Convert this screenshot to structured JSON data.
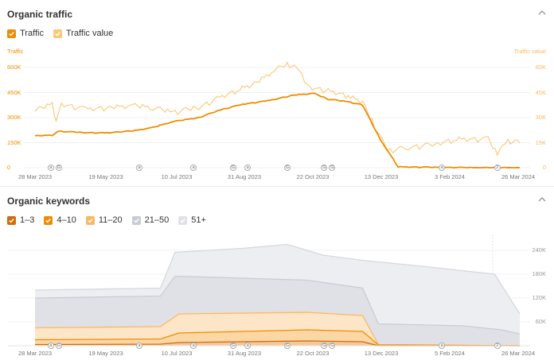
{
  "traffic_section": {
    "title": "Organic traffic",
    "legend": [
      {
        "label": "Traffic",
        "color": "#f08c00",
        "checked": true
      },
      {
        "label": "Traffic value",
        "color": "#fbc778",
        "checked": true
      }
    ],
    "left_axis_label": "Traffic",
    "right_axis_label": "Traffic value",
    "left_ticks": [
      "600K",
      "450K",
      "300K",
      "150K",
      "0"
    ],
    "right_ticks": [
      "60K",
      "45K",
      "30K",
      "15K",
      "0"
    ],
    "x_ticks": [
      "28 Mar 2023",
      "19 May 2023",
      "10 Jul 2023",
      "31 Aug 2023",
      "22 Oct 2023",
      "13 Dec 2023",
      "3 Feb 2024",
      "26 Mar 2024"
    ],
    "markers": [
      {
        "label": "a",
        "date": "2023-04-09"
      },
      {
        "label": "G",
        "date": "2023-04-15"
      },
      {
        "label": "a",
        "date": "2023-06-15"
      },
      {
        "label": "a",
        "date": "2023-07-26"
      },
      {
        "label": "G",
        "date": "2023-08-25"
      },
      {
        "label": "a",
        "date": "2023-09-05"
      },
      {
        "label": "G",
        "date": "2023-10-05"
      },
      {
        "label": "G",
        "date": "2023-11-02"
      },
      {
        "label": "G",
        "date": "2023-11-08"
      },
      {
        "label": "a",
        "date": "2024-01-30"
      },
      {
        "label": "2",
        "date": "2024-03-12"
      }
    ]
  },
  "keywords_section": {
    "title": "Organic keywords",
    "legend": [
      {
        "label": "1–3",
        "color": "#d46b08",
        "checked": true
      },
      {
        "label": "4–10",
        "color": "#f08c00",
        "checked": true
      },
      {
        "label": "11–20",
        "color": "#fbb862",
        "checked": true
      },
      {
        "label": "21–50",
        "color": "#c9ccd3",
        "checked": true
      },
      {
        "label": "51+",
        "color": "#e0e2e7",
        "checked": true
      }
    ],
    "right_ticks": [
      "240K",
      "180K",
      "120K",
      "60K"
    ],
    "x_ticks": [
      "28 Mar 2023",
      "19 May 2023",
      "10 Jul 2023",
      "31 Aug 2023",
      "22 Oct 2023",
      "13 Dec 2023",
      "5 Feb 2024",
      "26 Mar 2024"
    ],
    "markers": [
      {
        "label": "a",
        "date": "2023-04-09"
      },
      {
        "label": "G",
        "date": "2023-04-15"
      },
      {
        "label": "a",
        "date": "2023-06-15"
      },
      {
        "label": "a",
        "date": "2023-07-26"
      },
      {
        "label": "G",
        "date": "2023-08-25"
      },
      {
        "label": "a",
        "date": "2023-09-05"
      },
      {
        "label": "G",
        "date": "2023-10-05"
      },
      {
        "label": "G",
        "date": "2023-11-02"
      },
      {
        "label": "G",
        "date": "2023-11-08"
      },
      {
        "label": "a",
        "date": "2024-01-30"
      },
      {
        "label": "2",
        "date": "2024-03-12"
      }
    ]
  },
  "colors": {
    "traffic": "#f08c00",
    "traffic_value": "#fbc778",
    "axis_orange": "#f08c00",
    "axis_light_orange": "#fbb862"
  },
  "chart_data": [
    {
      "type": "line",
      "title": "Organic traffic",
      "ylabel": "Traffic",
      "y2label": "Traffic value",
      "ylim": [
        0,
        600000
      ],
      "y2lim": [
        0,
        60000
      ],
      "series": [
        {
          "name": "Traffic",
          "axis": "left",
          "points": [
            [
              "2023-03-28",
              190000
            ],
            [
              "2023-04-10",
              195000
            ],
            [
              "2023-04-15",
              218000
            ],
            [
              "2023-05-05",
              210000
            ],
            [
              "2023-05-20",
              208000
            ],
            [
              "2023-06-10",
              220000
            ],
            [
              "2023-06-25",
              240000
            ],
            [
              "2023-07-10",
              275000
            ],
            [
              "2023-07-30",
              300000
            ],
            [
              "2023-08-15",
              345000
            ],
            [
              "2023-09-01",
              380000
            ],
            [
              "2023-09-20",
              400000
            ],
            [
              "2023-10-10",
              435000
            ],
            [
              "2023-10-25",
              445000
            ],
            [
              "2023-11-05",
              410000
            ],
            [
              "2023-11-20",
              395000
            ],
            [
              "2023-12-01",
              375000
            ],
            [
              "2023-12-15",
              160000
            ],
            [
              "2023-12-28",
              5000
            ],
            [
              "2024-02-15",
              0
            ],
            [
              "2024-03-29",
              0
            ]
          ]
        },
        {
          "name": "Traffic value",
          "axis": "right",
          "points": [
            [
              "2023-03-28",
              34000
            ],
            [
              "2023-04-10",
              38000
            ],
            [
              "2023-04-13",
              28000
            ],
            [
              "2023-04-17",
              38000
            ],
            [
              "2023-05-05",
              35000
            ],
            [
              "2023-05-25",
              36000
            ],
            [
              "2023-06-10",
              37000
            ],
            [
              "2023-06-25",
              36000
            ],
            [
              "2023-07-10",
              33000
            ],
            [
              "2023-07-30",
              36000
            ],
            [
              "2023-08-15",
              42000
            ],
            [
              "2023-08-30",
              47000
            ],
            [
              "2023-09-10",
              50000
            ],
            [
              "2023-09-25",
              58000
            ],
            [
              "2023-10-05",
              62000
            ],
            [
              "2023-10-12",
              60000
            ],
            [
              "2023-10-22",
              48000
            ],
            [
              "2023-11-05",
              46000
            ],
            [
              "2023-11-20",
              43000
            ],
            [
              "2023-12-01",
              39000
            ],
            [
              "2023-12-10",
              25000
            ],
            [
              "2023-12-20",
              10000
            ],
            [
              "2024-01-05",
              12000
            ],
            [
              "2024-01-25",
              14000
            ],
            [
              "2024-02-10",
              17000
            ],
            [
              "2024-03-05",
              17000
            ],
            [
              "2024-03-12",
              8000
            ],
            [
              "2024-03-20",
              16000
            ],
            [
              "2024-03-29",
              15000
            ]
          ]
        }
      ]
    },
    {
      "type": "area",
      "title": "Organic keywords",
      "ylim": [
        0,
        280000
      ],
      "stacked": true,
      "series": [
        {
          "name": "1–3",
          "points": [
            [
              "2023-03-28",
              3000
            ],
            [
              "2023-07-01",
              4000
            ],
            [
              "2023-07-15",
              8000
            ],
            [
              "2023-10-20",
              12000
            ],
            [
              "2023-12-01",
              10000
            ],
            [
              "2023-12-13",
              0
            ],
            [
              "2024-03-29",
              0
            ]
          ]
        },
        {
          "name": "4–10",
          "points": [
            [
              "2023-03-28",
              15000
            ],
            [
              "2023-07-01",
              17000
            ],
            [
              "2023-07-15",
              32000
            ],
            [
              "2023-10-20",
              40000
            ],
            [
              "2023-12-01",
              36000
            ],
            [
              "2023-12-13",
              2000
            ],
            [
              "2024-03-29",
              0
            ]
          ]
        },
        {
          "name": "11–20",
          "points": [
            [
              "2023-03-28",
              45000
            ],
            [
              "2023-07-01",
              48000
            ],
            [
              "2023-07-15",
              80000
            ],
            [
              "2023-10-20",
              84000
            ],
            [
              "2023-12-01",
              76000
            ],
            [
              "2023-12-13",
              3000
            ],
            [
              "2024-03-29",
              0
            ]
          ]
        },
        {
          "name": "21–50",
          "points": [
            [
              "2023-03-28",
              120000
            ],
            [
              "2023-07-01",
              125000
            ],
            [
              "2023-07-12",
              175000
            ],
            [
              "2023-09-01",
              170000
            ],
            [
              "2023-10-20",
              165000
            ],
            [
              "2023-12-01",
              145000
            ],
            [
              "2023-12-13",
              55000
            ],
            [
              "2024-02-15",
              50000
            ],
            [
              "2024-03-15",
              40000
            ],
            [
              "2024-03-29",
              30000
            ]
          ]
        },
        {
          "name": "51+",
          "points": [
            [
              "2023-03-28",
              140000
            ],
            [
              "2023-07-01",
              145000
            ],
            [
              "2023-07-12",
              235000
            ],
            [
              "2023-09-01",
              245000
            ],
            [
              "2023-10-05",
              255000
            ],
            [
              "2023-11-01",
              228000
            ],
            [
              "2023-12-01",
              215000
            ],
            [
              "2024-01-15",
              200000
            ],
            [
              "2024-03-10",
              180000
            ],
            [
              "2024-03-29",
              80000
            ]
          ]
        }
      ]
    }
  ]
}
